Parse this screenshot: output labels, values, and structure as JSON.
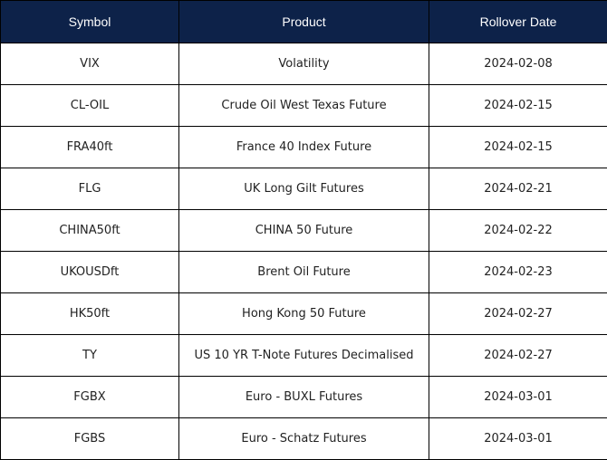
{
  "table": {
    "header": [
      "Symbol",
      "Product",
      "Rollover Date"
    ],
    "rows": [
      [
        "VIX",
        "Volatility",
        "2024-02-08"
      ],
      [
        "CL-OIL",
        "Crude Oil West Texas Future",
        "2024-02-15"
      ],
      [
        "FRA40ft",
        "France 40 Index Future",
        "2024-02-15"
      ],
      [
        "FLG",
        "UK Long Gilt Futures",
        "2024-02-21"
      ],
      [
        "CHINA50ft",
        "CHINA 50 Future",
        "2024-02-22"
      ],
      [
        "UKOUSDft",
        "Brent Oil Future",
        "2024-02-23"
      ],
      [
        "HK50ft",
        "Hong Kong 50 Future",
        "2024-02-27"
      ],
      [
        "TY",
        "US 10 YR T-Note Futures Decimalised",
        "2024-02-27"
      ],
      [
        "FGBX",
        "Euro - BUXL Futures",
        "2024-03-01"
      ],
      [
        "FGBS",
        "Euro - Schatz Futures",
        "2024-03-01"
      ]
    ]
  }
}
